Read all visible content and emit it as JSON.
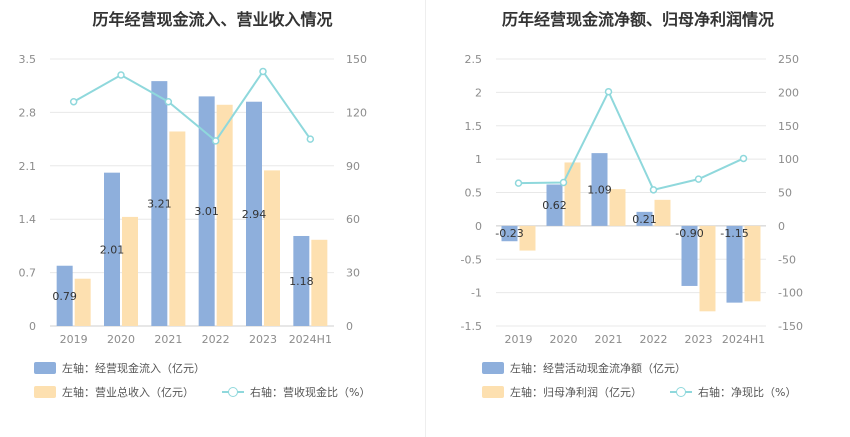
{
  "charts": [
    {
      "title": "历年经营现金流入、营业收入情况",
      "legend": [
        {
          "label": "左轴：经营现金流入（亿元）",
          "kind": "rect",
          "color": "#8eafdc"
        },
        {
          "label": "左轴：营业总收入（亿元）",
          "kind": "rect",
          "color": "#fde0b0"
        },
        {
          "label": "右轴：营收现金比（%）",
          "kind": "line",
          "color": "#8fd8dc"
        }
      ]
    },
    {
      "title": "历年经营现金流净额、归母净利润情况",
      "legend": [
        {
          "label": "左轴：经营活动现金流净额（亿元）",
          "kind": "rect",
          "color": "#8eafdc"
        },
        {
          "label": "左轴：归母净利润（亿元）",
          "kind": "rect",
          "color": "#fde0b0"
        },
        {
          "label": "右轴：净现比（%）",
          "kind": "line",
          "color": "#8fd8dc"
        }
      ]
    }
  ],
  "chart_data": [
    {
      "type": "bar",
      "title": "历年经营现金流入、营业收入情况",
      "categories": [
        "2019",
        "2020",
        "2021",
        "2022",
        "2023",
        "2024H1"
      ],
      "left_axis": {
        "ticks": [
          "0",
          "0.7",
          "1.4",
          "2.1",
          "2.8",
          "3.5"
        ],
        "range": [
          0,
          3.5
        ]
      },
      "right_axis": {
        "ticks": [
          "0",
          "30",
          "60",
          "90",
          "120",
          "150"
        ],
        "range": [
          0,
          150
        ]
      },
      "series": [
        {
          "name": "左轴：经营现金流入（亿元）",
          "axis": "left",
          "type": "bar",
          "color": "#8eafdc",
          "values": [
            0.79,
            2.01,
            3.21,
            3.01,
            2.94,
            1.18
          ],
          "data_labels": [
            "0.79",
            "2.01",
            "3.21",
            "3.01",
            "2.94",
            "1.18"
          ]
        },
        {
          "name": "左轴：营业总收入（亿元）",
          "axis": "left",
          "type": "bar",
          "color": "#fde0b0",
          "values": [
            0.62,
            1.43,
            2.55,
            2.9,
            2.04,
            1.13
          ]
        },
        {
          "name": "右轴：营收现金比（%）",
          "axis": "right",
          "type": "line",
          "color": "#8fd8dc",
          "values": [
            126,
            141,
            126,
            104,
            143,
            105
          ]
        }
      ]
    },
    {
      "type": "bar",
      "title": "历年经营现金流净额、归母净利润情况",
      "categories": [
        "2019",
        "2020",
        "2021",
        "2022",
        "2023",
        "2024H1"
      ],
      "left_axis": {
        "ticks": [
          "-1.5",
          "-1",
          "-0.5",
          "0",
          "0.5",
          "1",
          "1.5",
          "2",
          "2.5"
        ],
        "range": [
          -1.5,
          2.5
        ]
      },
      "right_axis": {
        "ticks": [
          "-150",
          "-100",
          "-50",
          "0",
          "50",
          "100",
          "150",
          "200",
          "250"
        ],
        "range": [
          -150,
          250
        ]
      },
      "series": [
        {
          "name": "左轴：经营活动现金流净额（亿元）",
          "axis": "left",
          "type": "bar",
          "color": "#8eafdc",
          "values": [
            -0.23,
            0.62,
            1.09,
            0.21,
            -0.9,
            -1.15
          ],
          "data_labels": [
            "-0.23",
            "0.62",
            "1.09",
            "0.21",
            "-0.90",
            "-1.15"
          ]
        },
        {
          "name": "左轴：归母净利润（亿元）",
          "axis": "left",
          "type": "bar",
          "color": "#fde0b0",
          "values": [
            -0.37,
            0.95,
            0.55,
            0.39,
            -1.28,
            -1.13
          ]
        },
        {
          "name": "右轴：净现比（%）",
          "axis": "right",
          "type": "line",
          "color": "#8fd8dc",
          "values": [
            64,
            65,
            201,
            54,
            70,
            101
          ]
        }
      ]
    }
  ]
}
